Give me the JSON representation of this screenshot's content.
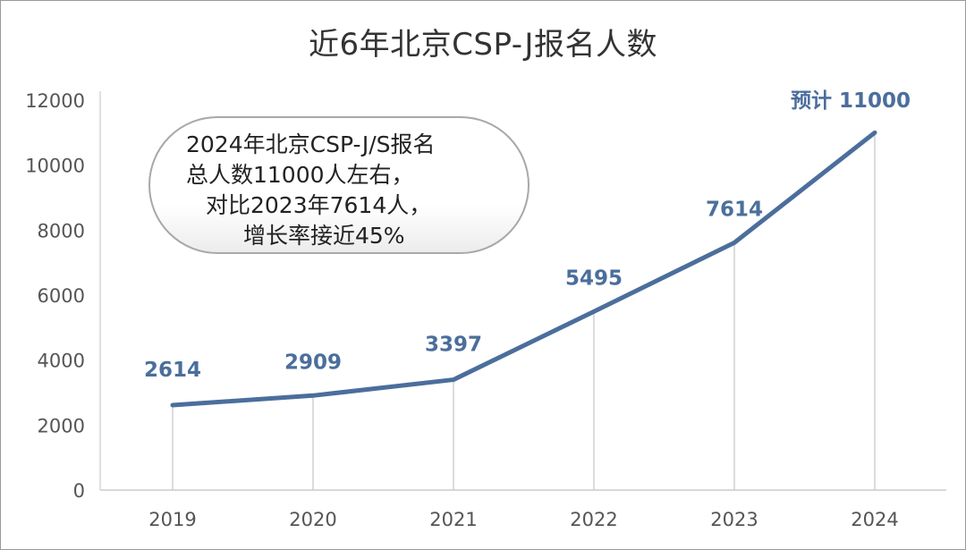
{
  "chart_data": {
    "type": "line",
    "title": "近6年北京CSP-J报名人数",
    "categories": [
      "2019",
      "2020",
      "2021",
      "2022",
      "2023",
      "2024"
    ],
    "values": [
      2614,
      2909,
      3397,
      5495,
      7614,
      11000
    ],
    "data_labels": [
      "2614",
      "2909",
      "3397",
      "5495",
      "7614",
      "预计 11000"
    ],
    "ylim": [
      0,
      12000
    ],
    "y_ticks": [
      "0",
      "2000",
      "4000",
      "6000",
      "8000",
      "10000",
      "12000"
    ],
    "xlabel": "",
    "ylabel": "",
    "grid": false,
    "drop_lines": true,
    "line_color": "#4b6e9c",
    "annotation": {
      "lines": [
        "2024年北京CSP-J/S报名",
        "总人数11000人左右，",
        "对比2023年7614人，",
        "增长率接近45%"
      ]
    }
  }
}
